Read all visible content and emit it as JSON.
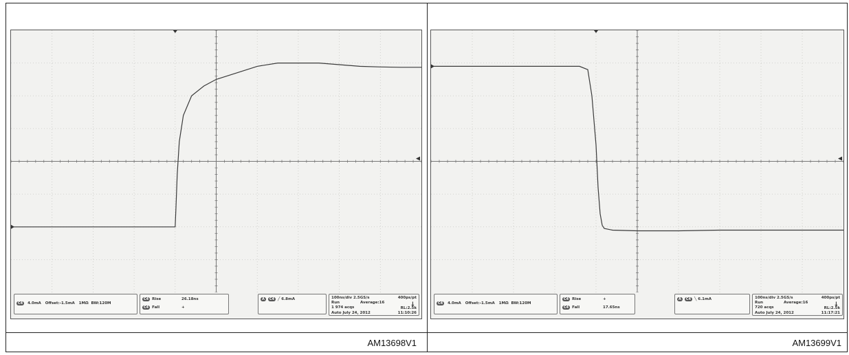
{
  "figures": [
    {
      "caption": "AM13698V1",
      "ch_scale": "4.0mA",
      "ch_offset": "Offset:-1.5mA",
      "ch_imp": "1MΩ",
      "ch_bw": "BW:120M",
      "ch_tag": "C4",
      "rise_label": "Rise",
      "rise_value": "26.18ns",
      "fall_label": "Fall",
      "fall_value": "+",
      "trigger_tag": "A",
      "trigger_value": "6.8mA",
      "timebase": "100ns/div 2.5GS/s",
      "resolution": "400ps/pt",
      "mode": "Run",
      "average": "Average:16",
      "acqs": "1 974 acqs",
      "rl": "RL:2.5k",
      "auto": "Auto July 24, 2012",
      "time": "11:10:26"
    },
    {
      "caption": "AM13699V1",
      "ch_scale": "4.0mA",
      "ch_offset": "Offset:-1.5mA",
      "ch_imp": "1MΩ",
      "ch_bw": "BW:120M",
      "ch_tag": "C4",
      "rise_label": "Rise",
      "rise_value": "+",
      "fall_label": "Fall",
      "fall_value": "17.65ns",
      "trigger_tag": "A",
      "trigger_value": "6.1mA",
      "timebase": "100ns/div 2.5GS/s",
      "resolution": "400ps/pt",
      "mode": "Run",
      "average": "Average:16",
      "acqs": "720 acqs",
      "rl": "RL:2.5k",
      "auto": "Auto July 24, 2012",
      "time": "11:17:21"
    }
  ],
  "chart_data": [
    {
      "type": "line",
      "title": "",
      "xlabel": "",
      "ylabel": "",
      "xlim": [
        0,
        10
      ],
      "ylim": [
        -4,
        4
      ],
      "grid": true,
      "series": [
        {
          "x": [
            0,
            4.0,
            4.02,
            4.05,
            4.1,
            4.2,
            4.4,
            4.7,
            5.0,
            5.5,
            6.0,
            6.5,
            7.0,
            7.5,
            8.0,
            8.5,
            9.0,
            9.5,
            10.0
          ],
          "y": [
            -2.0,
            -2.0,
            -1.4,
            -0.4,
            0.6,
            1.4,
            2.0,
            2.3,
            2.5,
            2.7,
            2.9,
            3.0,
            3.0,
            3.0,
            2.95,
            2.9,
            2.88,
            2.87,
            2.87
          ]
        }
      ]
    },
    {
      "type": "line",
      "title": "",
      "xlabel": "",
      "ylabel": "",
      "xlim": [
        0,
        10
      ],
      "ylim": [
        -4,
        4
      ],
      "grid": true,
      "series": [
        {
          "x": [
            0,
            1.0,
            2.0,
            3.0,
            3.6,
            3.8,
            3.9,
            4.0,
            4.05,
            4.1,
            4.15,
            4.2,
            4.4,
            5.0,
            6.0,
            7.0,
            8.0,
            9.0,
            10.0
          ],
          "y": [
            2.9,
            2.9,
            2.9,
            2.9,
            2.9,
            2.8,
            2.0,
            0.5,
            -0.8,
            -1.6,
            -1.95,
            -2.05,
            -2.1,
            -2.12,
            -2.12,
            -2.1,
            -2.1,
            -2.1,
            -2.1
          ]
        }
      ]
    }
  ]
}
